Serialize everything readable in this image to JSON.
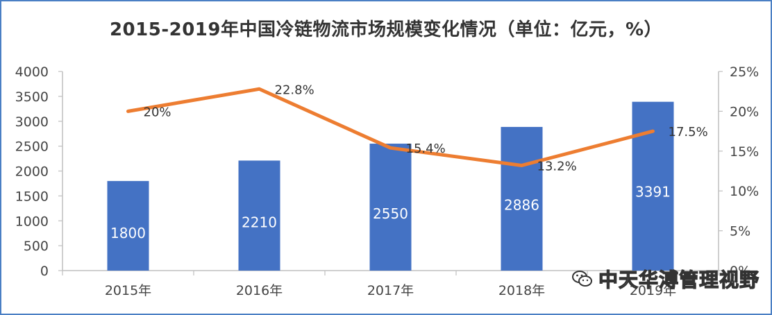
{
  "chart_data": {
    "type": "bar",
    "title": "2015-2019年中国冷链物流市场规模变化情况（单位：亿元，%）",
    "categories": [
      "2015年",
      "2016年",
      "2017年",
      "2018年",
      "2019年"
    ],
    "series": [
      {
        "type": "bar",
        "axis": "left",
        "values": [
          1800,
          2210,
          2550,
          2886,
          3391
        ],
        "labels": [
          "1800",
          "2210",
          "2550",
          "2886",
          "3391"
        ],
        "color": "#4472c4"
      },
      {
        "type": "line",
        "axis": "right",
        "values": [
          20,
          22.8,
          15.4,
          13.2,
          17.5
        ],
        "labels": [
          "20%",
          "22.8%",
          "15.4%",
          "13.2%",
          "17.5%"
        ],
        "color": "#ed7d31"
      }
    ],
    "y_left": {
      "range": [
        0,
        4000
      ],
      "ticks": [
        0,
        500,
        1000,
        1500,
        2000,
        2500,
        3000,
        3500,
        4000
      ],
      "tick_labels": [
        "0",
        "500",
        "1000",
        "1500",
        "2000",
        "2500",
        "3000",
        "3500",
        "4000"
      ]
    },
    "y_right": {
      "range": [
        0,
        25
      ],
      "ticks": [
        0,
        5,
        10,
        15,
        20,
        25
      ],
      "tick_labels": [
        "0%",
        "5%",
        "10%",
        "15%",
        "20%",
        "25%"
      ]
    },
    "grid": false,
    "legend": "none"
  },
  "watermark": {
    "text": "中天华溥管理视野",
    "icon": "wechat-icon"
  }
}
